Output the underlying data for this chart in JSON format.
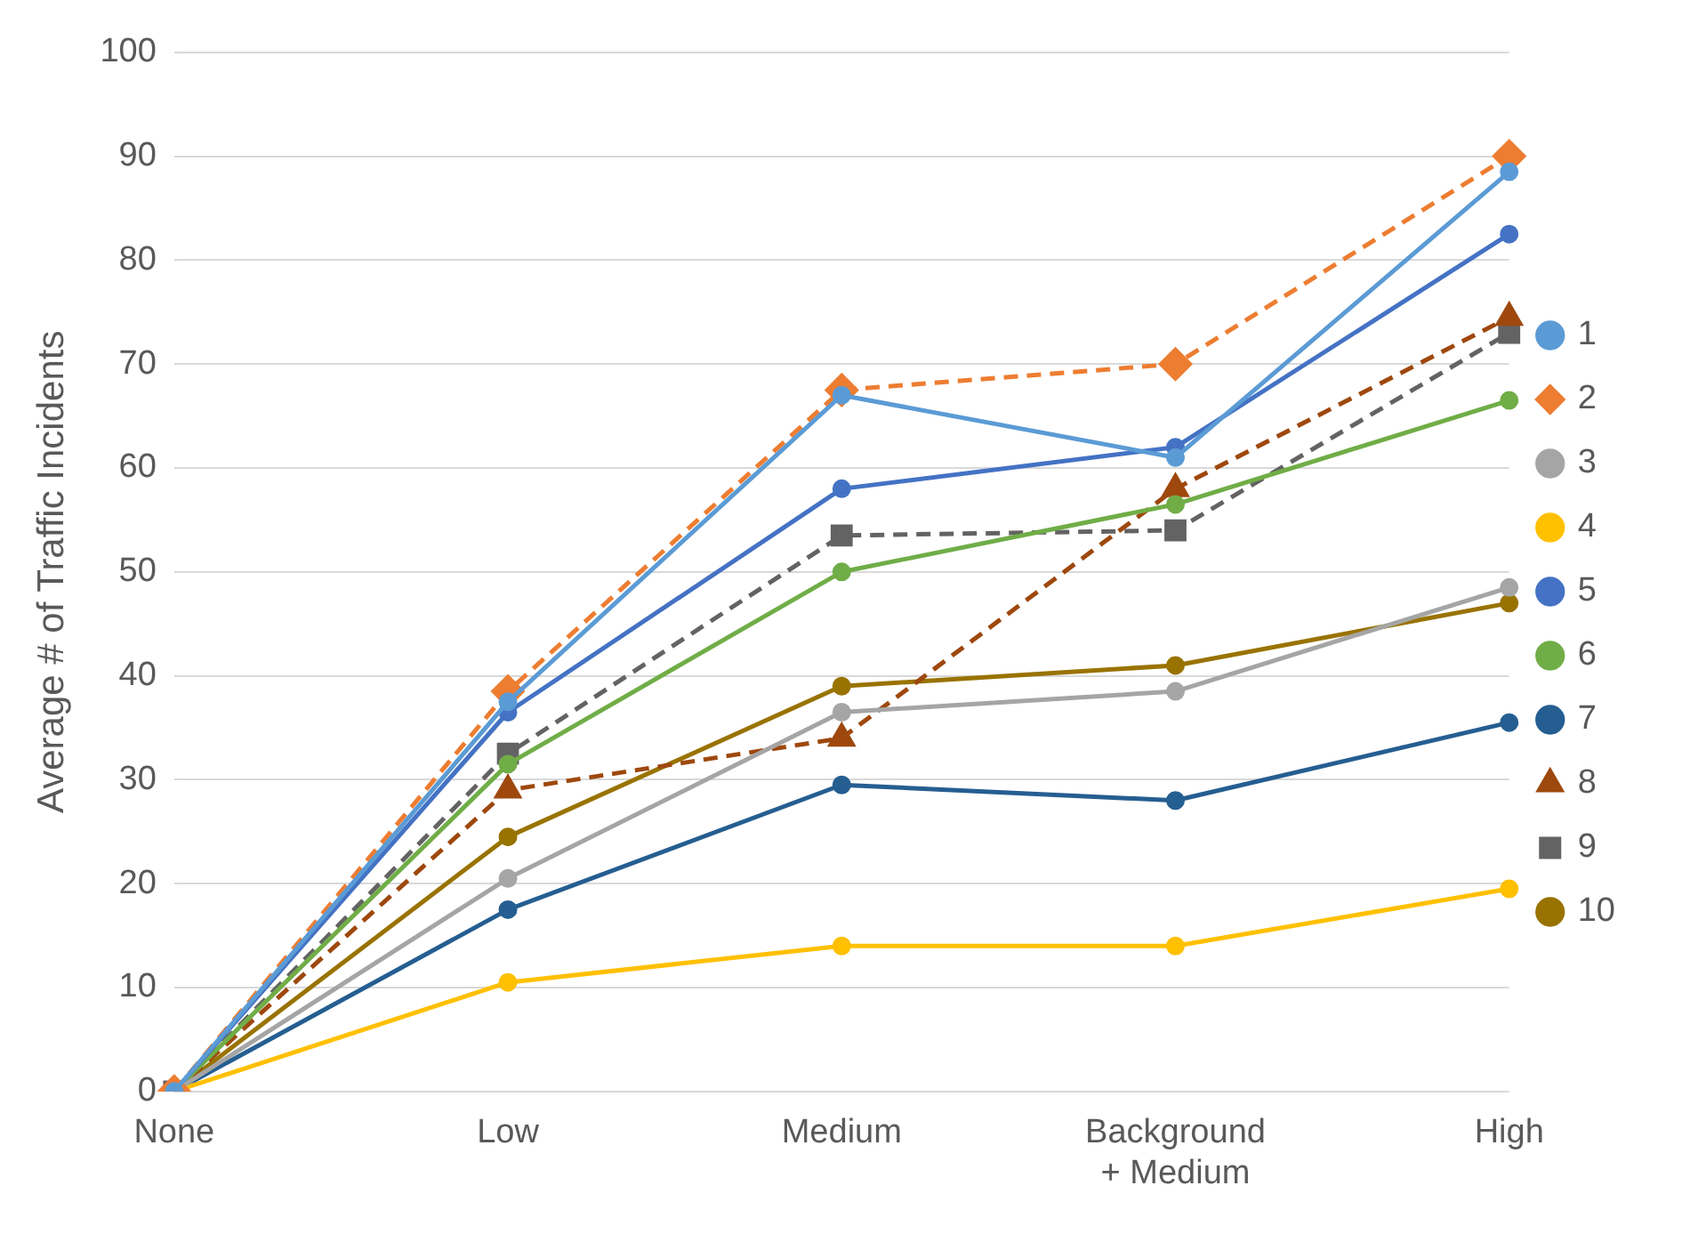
{
  "chart_data": {
    "type": "line",
    "ylabel": "Average # of Traffic Incidents",
    "categories": [
      "None",
      "Low",
      "Medium",
      "Background + Medium",
      "High"
    ],
    "ylim": [
      0,
      100
    ],
    "yticks": [
      0,
      10,
      20,
      30,
      40,
      50,
      60,
      70,
      80,
      90,
      100
    ],
    "grid": "y",
    "legend": "right",
    "series": [
      {
        "name": "1",
        "color": "#5b9bd5",
        "marker": "circle",
        "line_style": "solid",
        "values": [
          0,
          37.5,
          67,
          61,
          88.5
        ]
      },
      {
        "name": "2",
        "color": "#ed7d31",
        "marker": "diamond",
        "line_style": "dashed",
        "values": [
          0,
          38.5,
          67.5,
          70,
          90
        ]
      },
      {
        "name": "3",
        "color": "#a5a5a5",
        "marker": "circle",
        "line_style": "solid",
        "values": [
          0,
          20.5,
          36.5,
          38.5,
          48.5
        ]
      },
      {
        "name": "4",
        "color": "#ffc000",
        "marker": "circle",
        "line_style": "solid",
        "values": [
          0,
          10.5,
          14,
          14,
          19.5
        ]
      },
      {
        "name": "5",
        "color": "#4472c4",
        "marker": "circle",
        "line_style": "solid",
        "values": [
          0,
          36.5,
          58,
          62,
          82.5
        ]
      },
      {
        "name": "6",
        "color": "#70ad47",
        "marker": "circle",
        "line_style": "solid",
        "values": [
          0,
          31.5,
          50,
          56.5,
          66.5
        ]
      },
      {
        "name": "7",
        "color": "#255e91",
        "marker": "circle",
        "line_style": "solid",
        "values": [
          0,
          17.5,
          29.5,
          28,
          35.5
        ]
      },
      {
        "name": "8",
        "color": "#9e480e",
        "marker": "triangle",
        "line_style": "dashed",
        "values": [
          0,
          29,
          34,
          58,
          74.5
        ]
      },
      {
        "name": "9",
        "color": "#636363",
        "marker": "square",
        "line_style": "dashed",
        "values": [
          0,
          32.5,
          53.5,
          54,
          73
        ]
      },
      {
        "name": "10",
        "color": "#997300",
        "marker": "circle",
        "line_style": "solid",
        "values": [
          0,
          24.5,
          39,
          41,
          47
        ]
      }
    ]
  }
}
